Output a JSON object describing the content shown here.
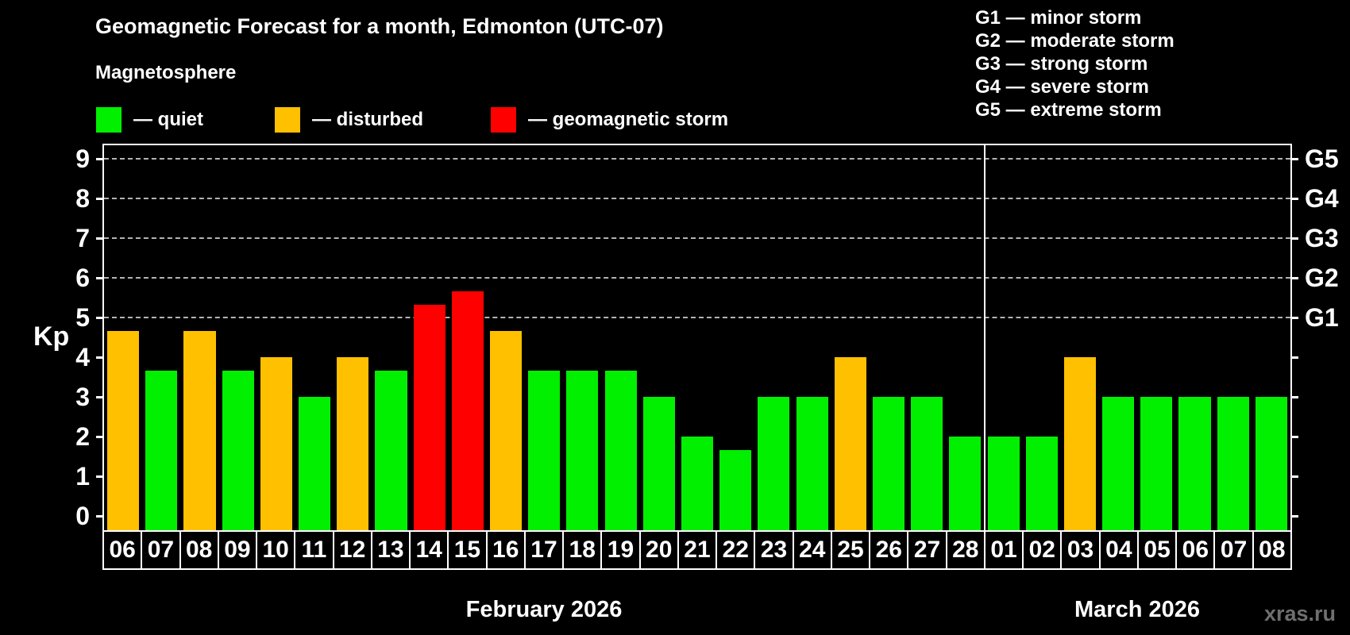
{
  "title": "Geomagnetic Forecast for a month, Edmonton (UTC-07)",
  "subtitle": "Magnetosphere",
  "legend": [
    {
      "status": "quiet",
      "label": "— quiet"
    },
    {
      "status": "disturbed",
      "label": "— disturbed"
    },
    {
      "status": "storm",
      "label": "— geomagnetic storm"
    }
  ],
  "g_scale_legend": [
    "G1 — minor storm",
    "G2 — moderate storm",
    "G3 — strong storm",
    "G4 — severe storm",
    "G5 — extreme storm"
  ],
  "watermark": "xras.ru",
  "colors": {
    "background": "#000000",
    "quiet": "#00f000",
    "disturbed": "#ffc000",
    "storm": "#ff0000",
    "gridline": "#b3b3b3",
    "axis": "#ffffff",
    "watermark": "#6f6f6f"
  },
  "chart_data": {
    "type": "bar",
    "title": "Geomagnetic Forecast for a month, Edmonton (UTC-07)",
    "ylabel": "Kp",
    "ylim": [
      0,
      9
    ],
    "y_ticks": [
      0,
      1,
      2,
      3,
      4,
      5,
      6,
      7,
      8,
      9
    ],
    "grid_levels": [
      5,
      6,
      7,
      8,
      9
    ],
    "right_axis_labels": [
      {
        "kp": 5,
        "label": "G1"
      },
      {
        "kp": 6,
        "label": "G2"
      },
      {
        "kp": 7,
        "label": "G3"
      },
      {
        "kp": 8,
        "label": "G4"
      },
      {
        "kp": 9,
        "label": "G5"
      }
    ],
    "months": [
      {
        "label": "February 2026",
        "bar_count": 23
      },
      {
        "label": "March 2026",
        "bar_count": 8
      }
    ],
    "bars": [
      {
        "month": "February 2026",
        "day": "06",
        "kp": 4.67,
        "status": "disturbed"
      },
      {
        "month": "February 2026",
        "day": "07",
        "kp": 3.67,
        "status": "quiet"
      },
      {
        "month": "February 2026",
        "day": "08",
        "kp": 4.67,
        "status": "disturbed"
      },
      {
        "month": "February 2026",
        "day": "09",
        "kp": 3.67,
        "status": "quiet"
      },
      {
        "month": "February 2026",
        "day": "10",
        "kp": 4.0,
        "status": "disturbed"
      },
      {
        "month": "February 2026",
        "day": "11",
        "kp": 3.0,
        "status": "quiet"
      },
      {
        "month": "February 2026",
        "day": "12",
        "kp": 4.0,
        "status": "disturbed"
      },
      {
        "month": "February 2026",
        "day": "13",
        "kp": 3.67,
        "status": "quiet"
      },
      {
        "month": "February 2026",
        "day": "14",
        "kp": 5.33,
        "status": "storm"
      },
      {
        "month": "February 2026",
        "day": "15",
        "kp": 5.67,
        "status": "storm"
      },
      {
        "month": "February 2026",
        "day": "16",
        "kp": 4.67,
        "status": "disturbed"
      },
      {
        "month": "February 2026",
        "day": "17",
        "kp": 3.67,
        "status": "quiet"
      },
      {
        "month": "February 2026",
        "day": "18",
        "kp": 3.67,
        "status": "quiet"
      },
      {
        "month": "February 2026",
        "day": "19",
        "kp": 3.67,
        "status": "quiet"
      },
      {
        "month": "February 2026",
        "day": "20",
        "kp": 3.0,
        "status": "quiet"
      },
      {
        "month": "February 2026",
        "day": "21",
        "kp": 2.0,
        "status": "quiet"
      },
      {
        "month": "February 2026",
        "day": "22",
        "kp": 1.67,
        "status": "quiet"
      },
      {
        "month": "February 2026",
        "day": "23",
        "kp": 3.0,
        "status": "quiet"
      },
      {
        "month": "February 2026",
        "day": "24",
        "kp": 3.0,
        "status": "quiet"
      },
      {
        "month": "February 2026",
        "day": "25",
        "kp": 4.0,
        "status": "disturbed"
      },
      {
        "month": "February 2026",
        "day": "26",
        "kp": 3.0,
        "status": "quiet"
      },
      {
        "month": "February 2026",
        "day": "27",
        "kp": 3.0,
        "status": "quiet"
      },
      {
        "month": "February 2026",
        "day": "28",
        "kp": 2.0,
        "status": "quiet"
      },
      {
        "month": "March 2026",
        "day": "01",
        "kp": 2.0,
        "status": "quiet"
      },
      {
        "month": "March 2026",
        "day": "02",
        "kp": 2.0,
        "status": "quiet"
      },
      {
        "month": "March 2026",
        "day": "03",
        "kp": 4.0,
        "status": "disturbed"
      },
      {
        "month": "March 2026",
        "day": "04",
        "kp": 3.0,
        "status": "quiet"
      },
      {
        "month": "March 2026",
        "day": "05",
        "kp": 3.0,
        "status": "quiet"
      },
      {
        "month": "March 2026",
        "day": "06",
        "kp": 3.0,
        "status": "quiet"
      },
      {
        "month": "March 2026",
        "day": "07",
        "kp": 3.0,
        "status": "quiet"
      },
      {
        "month": "March 2026",
        "day": "08",
        "kp": 3.0,
        "status": "quiet"
      }
    ]
  }
}
